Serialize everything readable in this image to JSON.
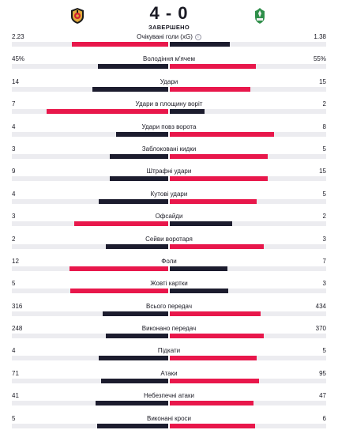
{
  "match": {
    "score": "4 - 0",
    "status": "ЗАВЕРШЕНО",
    "home_logo_icon": "zorya-crest-icon",
    "away_logo_icon": "oleksandriya-crest-icon"
  },
  "colors": {
    "win": "#e8174b",
    "lose": "#1c1c2e",
    "track": "#ececf0"
  },
  "stats": [
    {
      "label": "Очікувані голи (xG)",
      "home": "2.23",
      "away": "1.38",
      "info": true,
      "h": 2.23,
      "a": 1.38
    },
    {
      "label": "Володіння м'ячем",
      "home": "45%",
      "away": "55%",
      "h": 45,
      "a": 55
    },
    {
      "label": "Удари",
      "home": "14",
      "away": "15",
      "h": 14,
      "a": 15
    },
    {
      "label": "Удари в площину воріт",
      "home": "7",
      "away": "2",
      "h": 7,
      "a": 2
    },
    {
      "label": "Удари повз ворота",
      "home": "4",
      "away": "8",
      "h": 4,
      "a": 8
    },
    {
      "label": "Заблоковані кидки",
      "home": "3",
      "away": "5",
      "h": 3,
      "a": 5
    },
    {
      "label": "Штрафні удари",
      "home": "9",
      "away": "15",
      "h": 9,
      "a": 15
    },
    {
      "label": "Кутові удари",
      "home": "4",
      "away": "5",
      "h": 4,
      "a": 5
    },
    {
      "label": "Офсайди",
      "home": "3",
      "away": "2",
      "h": 3,
      "a": 2
    },
    {
      "label": "Сейви воротаря",
      "home": "2",
      "away": "3",
      "h": 2,
      "a": 3
    },
    {
      "label": "Фоли",
      "home": "12",
      "away": "7",
      "h": 12,
      "a": 7
    },
    {
      "label": "Жовті картки",
      "home": "5",
      "away": "3",
      "h": 5,
      "a": 3
    },
    {
      "label": "Всього передач",
      "home": "316",
      "away": "434",
      "h": 316,
      "a": 434
    },
    {
      "label": "Виконано передач",
      "home": "248",
      "away": "370",
      "h": 248,
      "a": 370
    },
    {
      "label": "Підкати",
      "home": "4",
      "away": "5",
      "h": 4,
      "a": 5
    },
    {
      "label": "Атаки",
      "home": "71",
      "away": "95",
      "h": 71,
      "a": 95
    },
    {
      "label": "Небезпечні атаки",
      "home": "41",
      "away": "47",
      "h": 41,
      "a": 47
    },
    {
      "label": "Виконані кроси",
      "home": "5",
      "away": "6",
      "h": 5,
      "a": 6
    }
  ]
}
